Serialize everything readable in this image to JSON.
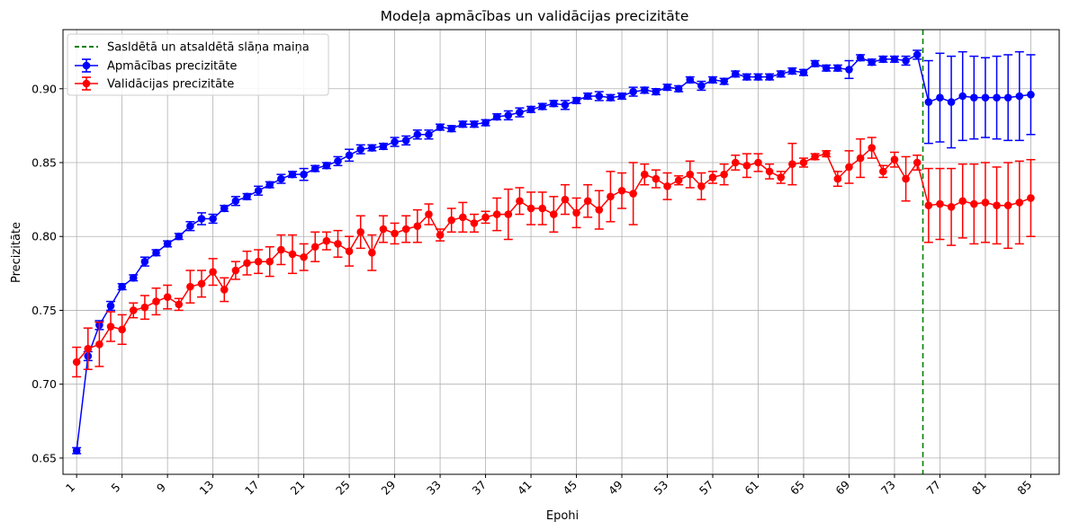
{
  "chart_data": {
    "type": "line",
    "title": "Modeļa apmācības un validācijas precizitāte",
    "xlabel": "Epohi",
    "ylabel": "Precizitāte",
    "xlim": [
      -0.2,
      87.5
    ],
    "ylim": [
      0.639,
      0.94
    ],
    "x_ticks": [
      1,
      5,
      9,
      13,
      17,
      21,
      25,
      29,
      33,
      37,
      41,
      45,
      49,
      53,
      57,
      61,
      65,
      69,
      73,
      77,
      81,
      85
    ],
    "y_ticks": [
      0.65,
      0.7,
      0.75,
      0.8,
      0.85,
      0.9
    ],
    "y_tick_labels": [
      "0.65",
      "0.70",
      "0.75",
      "0.80",
      "0.85",
      "0.90"
    ],
    "grid": true,
    "legend_position": "top-left",
    "vline": {
      "x": 75.5,
      "label": "Sasldētā un atsaldētā slāņa maiņa",
      "color": "#008000",
      "style": "dashed"
    },
    "series": [
      {
        "name": "Apmācības precizitāte",
        "color": "#0000ff",
        "values": [
          0.655,
          0.719,
          0.74,
          0.753,
          0.766,
          0.772,
          0.783,
          0.789,
          0.795,
          0.8,
          0.807,
          0.812,
          0.812,
          0.819,
          0.824,
          0.827,
          0.831,
          0.835,
          0.839,
          0.842,
          0.842,
          0.846,
          0.848,
          0.851,
          0.855,
          0.859,
          0.86,
          0.861,
          0.864,
          0.865,
          0.869,
          0.869,
          0.874,
          0.873,
          0.876,
          0.876,
          0.877,
          0.881,
          0.882,
          0.884,
          0.886,
          0.888,
          0.89,
          0.889,
          0.892,
          0.895,
          0.895,
          0.894,
          0.895,
          0.898,
          0.899,
          0.898,
          0.901,
          0.9,
          0.906,
          0.902,
          0.906,
          0.905,
          0.91,
          0.908,
          0.908,
          0.908,
          0.91,
          0.912,
          0.911,
          0.917,
          0.914,
          0.914,
          0.913,
          0.921,
          0.918,
          0.92,
          0.92,
          0.919,
          0.923,
          0.891,
          0.894,
          0.891,
          0.895,
          0.894,
          0.894,
          0.894,
          0.894,
          0.895,
          0.896
        ],
        "errors": [
          0.002,
          0.003,
          0.003,
          0.003,
          0.002,
          0.002,
          0.003,
          0.002,
          0.002,
          0.002,
          0.003,
          0.004,
          0.003,
          0.002,
          0.003,
          0.002,
          0.003,
          0.002,
          0.003,
          0.002,
          0.004,
          0.002,
          0.002,
          0.003,
          0.004,
          0.003,
          0.002,
          0.002,
          0.003,
          0.003,
          0.003,
          0.003,
          0.002,
          0.002,
          0.002,
          0.002,
          0.002,
          0.002,
          0.003,
          0.003,
          0.002,
          0.002,
          0.002,
          0.003,
          0.002,
          0.002,
          0.003,
          0.002,
          0.002,
          0.003,
          0.002,
          0.002,
          0.002,
          0.002,
          0.002,
          0.003,
          0.002,
          0.002,
          0.002,
          0.002,
          0.002,
          0.002,
          0.002,
          0.002,
          0.002,
          0.002,
          0.002,
          0.002,
          0.006,
          0.002,
          0.002,
          0.002,
          0.002,
          0.003,
          0.003,
          0.028,
          0.03,
          0.031,
          0.03,
          0.028,
          0.027,
          0.028,
          0.029,
          0.03,
          0.027
        ]
      },
      {
        "name": "Validācijas precizitāte",
        "color": "#ff0000",
        "values": [
          0.715,
          0.724,
          0.727,
          0.739,
          0.737,
          0.75,
          0.752,
          0.756,
          0.759,
          0.754,
          0.766,
          0.768,
          0.776,
          0.764,
          0.777,
          0.782,
          0.783,
          0.783,
          0.791,
          0.788,
          0.786,
          0.793,
          0.797,
          0.795,
          0.79,
          0.803,
          0.789,
          0.805,
          0.802,
          0.805,
          0.807,
          0.815,
          0.801,
          0.811,
          0.813,
          0.809,
          0.813,
          0.815,
          0.815,
          0.824,
          0.819,
          0.819,
          0.815,
          0.825,
          0.816,
          0.824,
          0.818,
          0.827,
          0.831,
          0.829,
          0.842,
          0.839,
          0.834,
          0.838,
          0.842,
          0.834,
          0.84,
          0.842,
          0.85,
          0.848,
          0.85,
          0.844,
          0.84,
          0.849,
          0.85,
          0.854,
          0.856,
          0.839,
          0.847,
          0.853,
          0.86,
          0.844,
          0.852,
          0.839,
          0.85,
          0.821,
          0.822,
          0.82,
          0.824,
          0.822,
          0.823,
          0.821,
          0.821,
          0.823,
          0.826
        ],
        "errors": [
          0.01,
          0.014,
          0.015,
          0.01,
          0.01,
          0.005,
          0.008,
          0.009,
          0.008,
          0.004,
          0.011,
          0.009,
          0.009,
          0.008,
          0.006,
          0.008,
          0.008,
          0.01,
          0.01,
          0.013,
          0.009,
          0.01,
          0.006,
          0.009,
          0.01,
          0.011,
          0.012,
          0.009,
          0.007,
          0.009,
          0.011,
          0.007,
          0.004,
          0.008,
          0.01,
          0.006,
          0.004,
          0.011,
          0.017,
          0.009,
          0.011,
          0.011,
          0.012,
          0.01,
          0.01,
          0.011,
          0.013,
          0.017,
          0.012,
          0.021,
          0.007,
          0.006,
          0.009,
          0.003,
          0.009,
          0.009,
          0.004,
          0.007,
          0.005,
          0.008,
          0.006,
          0.005,
          0.004,
          0.014,
          0.003,
          0.002,
          0.002,
          0.005,
          0.011,
          0.013,
          0.007,
          0.004,
          0.005,
          0.015,
          0.005,
          0.025,
          0.024,
          0.026,
          0.025,
          0.027,
          0.027,
          0.026,
          0.029,
          0.028,
          0.026
        ]
      }
    ]
  }
}
